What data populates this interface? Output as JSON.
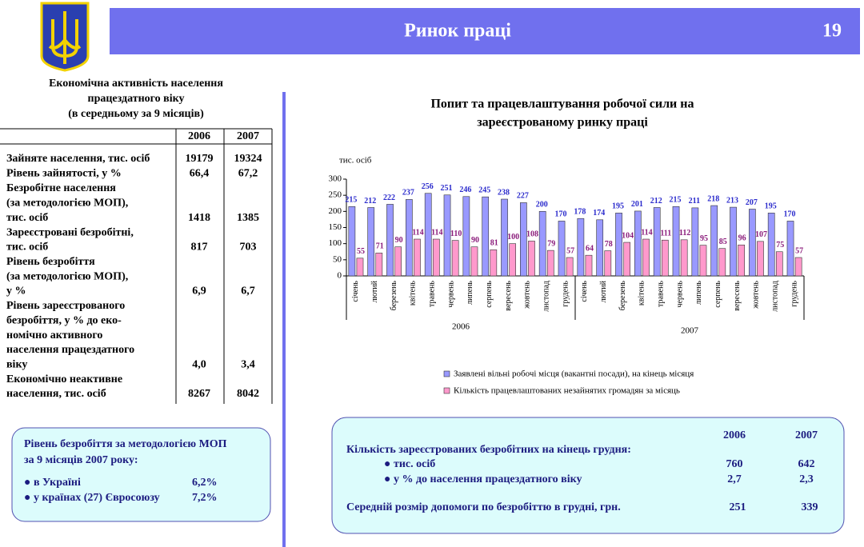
{
  "header": {
    "title": "Ринок праці",
    "page": "19"
  },
  "left_table": {
    "title": [
      "Економічна активність населення",
      "працездатного віку",
      "(в середньому за 9 місяців)"
    ],
    "columns": [
      "2006",
      "2007"
    ],
    "rows": [
      {
        "label": [
          "Зайняте населення, тис. осіб"
        ],
        "values": [
          "19179",
          "19324"
        ]
      },
      {
        "label": [
          "Рівень зайнятості, у %"
        ],
        "values": [
          "66,4",
          "67,2"
        ]
      },
      {
        "label": [
          "Безробітне населення",
          "(за методологією МОП),",
          "тис. осіб"
        ],
        "values": [
          "1418",
          "1385"
        ]
      },
      {
        "label": [
          "Зареєстровані безробітні,",
          "тис. осіб"
        ],
        "values": [
          "817",
          "703"
        ]
      },
      {
        "label": [
          "Рівень безробіття",
          "(за методологією МОП),",
          " у %"
        ],
        "values": [
          "6,9",
          "6,7"
        ]
      },
      {
        "label": [
          "Рівень зареєстрованого",
          "безробіття, у % до еко-",
          "номічно активного",
          "населення працездатного",
          "віку"
        ],
        "values": [
          "4,0",
          "3,4"
        ]
      },
      {
        "label": [
          "Економічно неактивне",
          "населення, тис. осіб"
        ],
        "values": [
          "8267",
          "8042"
        ]
      }
    ]
  },
  "info_box": {
    "title": [
      "Рівень безробіття за методологією МОП",
      "за  9 місяців 2007 року:"
    ],
    "items": [
      {
        "label": "● в Україні",
        "value": "6,2%"
      },
      {
        "label": "● у країнах (27) Євросоюзу",
        "value": "7,2%"
      }
    ]
  },
  "chart_data": {
    "type": "bar",
    "title": [
      "Попит та працевлаштування робочої сили на",
      "зареєстрованому ринку праці"
    ],
    "y_label": "тис. осіб",
    "categories": [
      "січень",
      "лютий",
      "березень",
      "квітень",
      "травень",
      "червень",
      "липень",
      "серпень",
      "вересень",
      "жовтень",
      "листопад",
      "грудень",
      "січень",
      "лютий",
      "березень",
      "квітень",
      "травень",
      "червень",
      "липень",
      "серпень",
      "вересень",
      "жовтень",
      "листопад",
      "грудень"
    ],
    "groups": [
      "2006",
      "2007"
    ],
    "ylim": [
      0,
      300
    ],
    "yticks": [
      0,
      50,
      100,
      150,
      200,
      250,
      300
    ],
    "series": [
      {
        "name": "Заявлені вільні робочі місця (вакантні посади), на кінець місяця",
        "color": "#9999ff",
        "label_color": "#2a2acc",
        "values": [
          215,
          212,
          222,
          237,
          256,
          251,
          246,
          245,
          238,
          227,
          200,
          170,
          178,
          174,
          195,
          201,
          212,
          215,
          211,
          218,
          213,
          207,
          195,
          170
        ]
      },
      {
        "name": "Кількість працевлаштованих незайнятих громадян за місяць",
        "color": "#ff99cc",
        "label_color": "#8a1a7a",
        "values": [
          55,
          71,
          90,
          114,
          114,
          110,
          90,
          81,
          100,
          108,
          79,
          57,
          64,
          78,
          104,
          114,
          111,
          112,
          95,
          85,
          96,
          107,
          75,
          57
        ]
      }
    ]
  },
  "bottom_box": {
    "columns": [
      "2006",
      "2007"
    ],
    "heading": "Кількість зареєстрованих безробітних на кінець грудня:",
    "rows": [
      {
        "label": "● тис. осіб",
        "values": [
          "760",
          "642"
        ]
      },
      {
        "label": "● у % до населення працездатного віку",
        "values": [
          "2,7",
          "2,3"
        ]
      },
      {
        "label": "Середній розмір допомоги по безробіттю в грудні, грн.",
        "values": [
          "251",
          "339"
        ]
      }
    ]
  }
}
